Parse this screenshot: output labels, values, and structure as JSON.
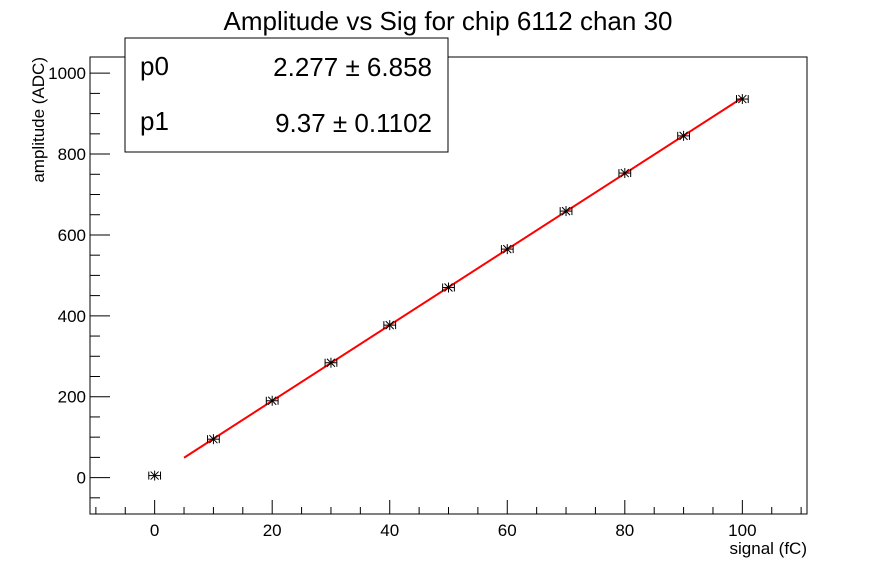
{
  "chart_data": {
    "type": "scatter",
    "title": "Amplitude vs Sig for chip 6112 chan 30",
    "xlabel": "signal (fC)",
    "ylabel": "amplitude (ADC)",
    "xlim": [
      -11,
      111
    ],
    "ylim": [
      -90,
      1040
    ],
    "x_ticks": [
      0,
      20,
      40,
      60,
      80,
      100
    ],
    "y_ticks": [
      0,
      200,
      400,
      600,
      800,
      1000
    ],
    "grid": false,
    "legend": "top-left",
    "marker_color": "#000000",
    "series": [
      {
        "points": [
          {
            "x": 0,
            "y": 5
          },
          {
            "x": 10,
            "y": 95
          },
          {
            "x": 20,
            "y": 190
          },
          {
            "x": 30,
            "y": 284
          },
          {
            "x": 40,
            "y": 377
          },
          {
            "x": 50,
            "y": 470
          },
          {
            "x": 60,
            "y": 565
          },
          {
            "x": 70,
            "y": 659
          },
          {
            "x": 80,
            "y": 753
          },
          {
            "x": 90,
            "y": 845
          },
          {
            "x": 100,
            "y": 936
          }
        ],
        "x_error": 1
      }
    ],
    "fit": {
      "color": "#ff0000",
      "x_range": [
        5,
        100
      ],
      "p0": 2.277,
      "p1": 9.37
    },
    "fit_box": {
      "rows": [
        {
          "name": "p0",
          "value": "2.277 ± 6.858"
        },
        {
          "name": "p1",
          "value": "9.37 ± 0.1102"
        }
      ]
    }
  }
}
